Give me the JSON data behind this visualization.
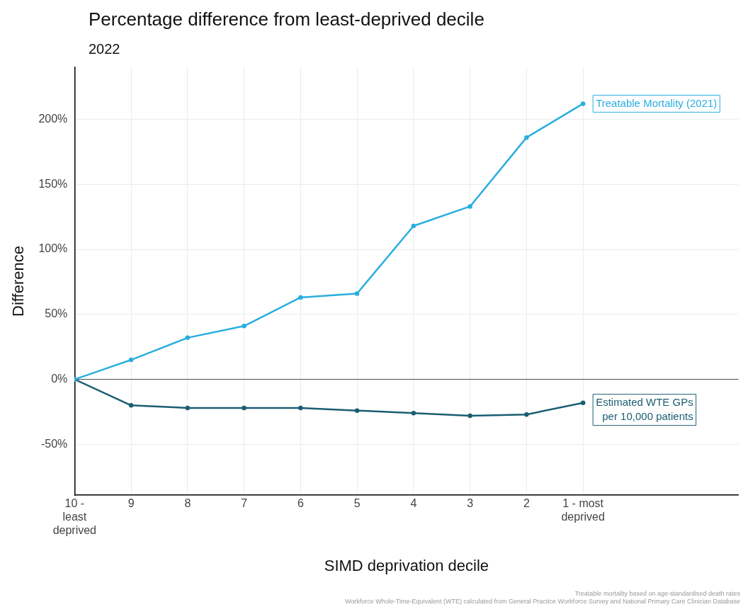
{
  "chart_data": {
    "type": "line",
    "title": "Percentage difference from least-deprived decile",
    "subtitle": "2022",
    "xlabel": "SIMD deprivation decile",
    "ylabel": "Difference",
    "categories": [
      "10 - least deprived",
      "9",
      "8",
      "7",
      "6",
      "5",
      "4",
      "3",
      "2",
      "1 - most deprived"
    ],
    "series": [
      {
        "name": "Treatable Mortality (2021)",
        "color": "#2aaee0",
        "values": [
          0,
          15,
          32,
          41,
          63,
          66,
          118,
          133,
          186,
          212
        ]
      },
      {
        "name": "Estimated WTE GPs\nper 10,000 patients",
        "color": "#1a5e72",
        "values": [
          0,
          -20,
          -22,
          -22,
          -22,
          -24,
          -26,
          -28,
          -27,
          -18
        ]
      }
    ],
    "ylim": [
      -89,
      240
    ],
    "yticks": [
      {
        "value": -50,
        "label": "-50%"
      },
      {
        "value": 0,
        "label": "0%"
      },
      {
        "value": 50,
        "label": "50%"
      },
      {
        "value": 100,
        "label": "100%"
      },
      {
        "value": 150,
        "label": "150%"
      },
      {
        "value": 200,
        "label": "200%"
      }
    ],
    "ref_lines": [
      {
        "axis": "y",
        "value": 0,
        "color": "#444444"
      }
    ],
    "grid": true,
    "legend": false,
    "marker": "circle",
    "line_style": "solid",
    "annotations": [
      "Treatable mortality based on age-standardised death rates",
      "Workforce Whole-Time-Equivalent (WTE) calculated from General Practice Workforce Survey and National Primary Care Clinician Database"
    ]
  }
}
